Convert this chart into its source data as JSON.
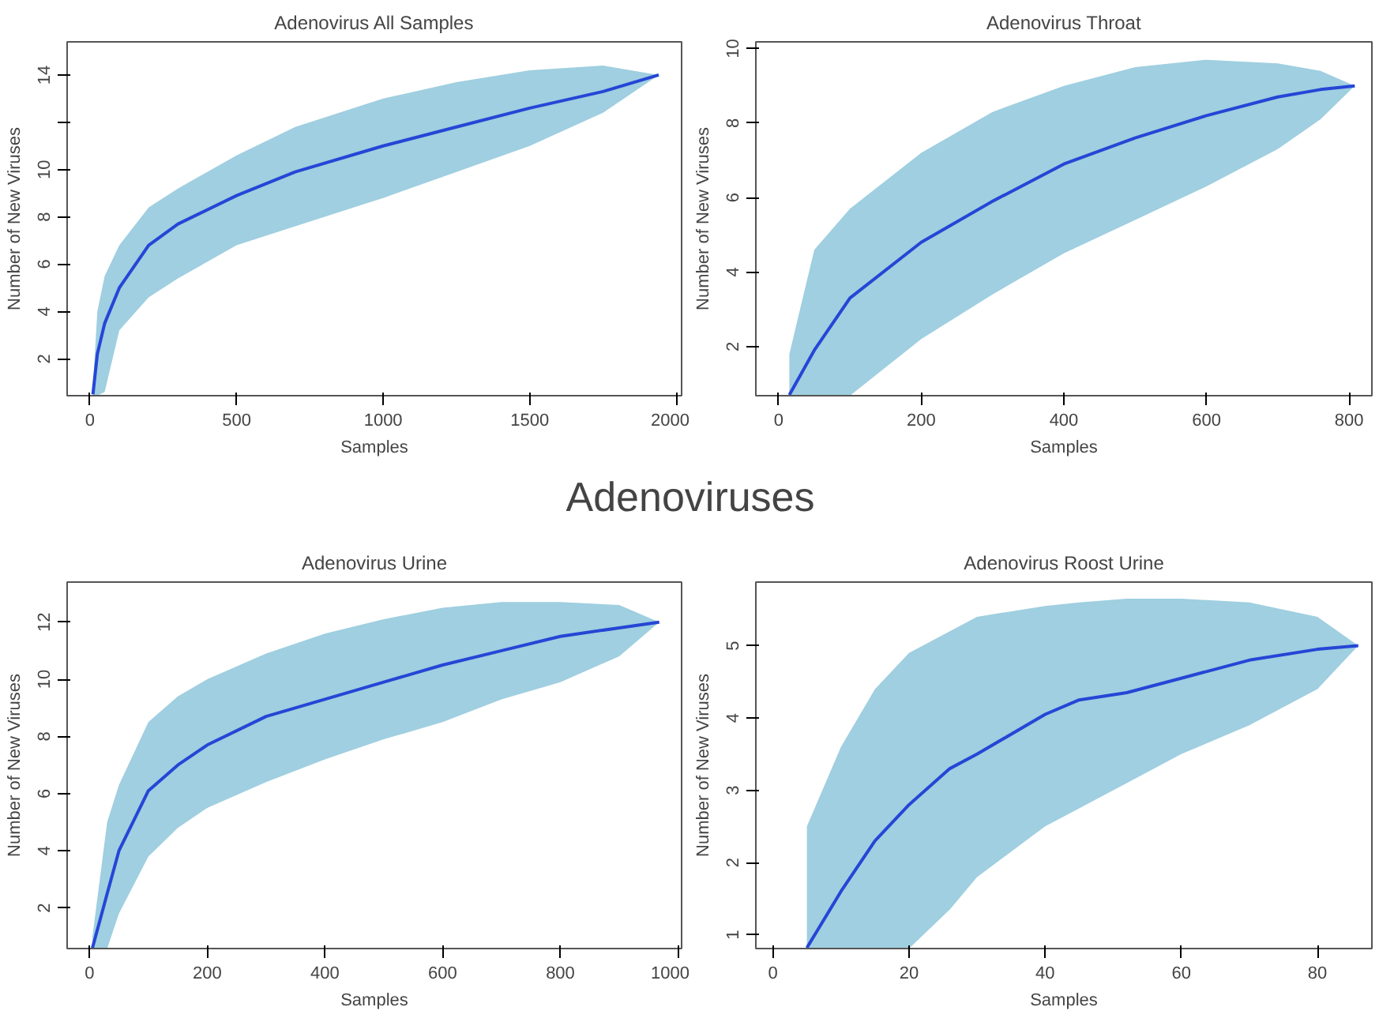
{
  "chart_data": [
    {
      "type": "line",
      "title": "Adenovirus All Samples",
      "xlabel": "Samples",
      "ylabel": "Number of New Viruses",
      "x": [
        10,
        25,
        50,
        100,
        200,
        300,
        500,
        700,
        1000,
        1250,
        1500,
        1750,
        1940
      ],
      "xlim": [
        -78,
        2018
      ],
      "ylim": [
        0.44,
        15.4
      ],
      "xticks": [
        0,
        500,
        1000,
        1500,
        2000
      ],
      "yticks": [
        2,
        4,
        6,
        8,
        10,
        {
          "value": 12,
          "label": null
        },
        14
      ],
      "series": [
        {
          "color": "#2546d6",
          "values": [
            0.5,
            2.2,
            3.5,
            5,
            6.8,
            7.7,
            8.9,
            9.9,
            11,
            11.8,
            12.6,
            13.3,
            14
          ],
          "upper": [
            0.8,
            4,
            5.5,
            6.8,
            8.4,
            9.2,
            10.6,
            11.8,
            13,
            13.7,
            14.2,
            14.4,
            14
          ],
          "lower": [
            0.44,
            0.44,
            0.6,
            3.2,
            4.6,
            5.4,
            6.8,
            7.6,
            8.8,
            9.9,
            11,
            12.4,
            14
          ]
        }
      ]
    },
    {
      "type": "line",
      "title": "Adenovirus Throat",
      "xlabel": "Samples",
      "ylabel": "Number of New Viruses",
      "x": [
        15,
        50,
        100,
        200,
        300,
        400,
        500,
        600,
        700,
        760,
        808
      ],
      "xlim": [
        -32,
        832
      ],
      "ylim": [
        0.68,
        10.18
      ],
      "xticks": [
        0,
        200,
        400,
        600,
        800
      ],
      "yticks": [
        2,
        4,
        6,
        8,
        10
      ],
      "series": [
        {
          "color": "#2546d6",
          "values": [
            0.7,
            1.9,
            3.3,
            4.8,
            5.9,
            6.9,
            7.6,
            8.2,
            8.7,
            8.9,
            9
          ],
          "upper": [
            1.8,
            4.6,
            5.7,
            7.2,
            8.3,
            9,
            9.5,
            9.7,
            9.6,
            9.4,
            9
          ],
          "lower": [
            0.68,
            0.68,
            0.68,
            2.2,
            3.4,
            4.5,
            5.4,
            6.3,
            7.3,
            8.1,
            9
          ]
        }
      ]
    },
    {
      "type": "other",
      "title": "Adenoviruses"
    },
    {
      "type": "line",
      "title": "Adenovirus Urine",
      "xlabel": "Samples",
      "ylabel": "Number of New Viruses",
      "x": [
        5,
        30,
        50,
        100,
        150,
        200,
        300,
        400,
        500,
        600,
        700,
        800,
        900,
        968
      ],
      "xlim": [
        -38,
        1006
      ],
      "ylim": [
        0.58,
        13.4
      ],
      "xticks": [
        0,
        200,
        400,
        600,
        800,
        1000
      ],
      "yticks": [
        2,
        4,
        6,
        8,
        10,
        12
      ],
      "series": [
        {
          "color": "#2546d6",
          "values": [
            0.6,
            2.5,
            4,
            6.1,
            7,
            7.7,
            8.7,
            9.3,
            9.9,
            10.5,
            11,
            11.5,
            11.8,
            12
          ],
          "upper": [
            1,
            5,
            6.3,
            8.5,
            9.4,
            10,
            10.9,
            11.6,
            12.1,
            12.5,
            12.7,
            12.7,
            12.6,
            12
          ],
          "lower": [
            0.58,
            0.58,
            1.8,
            3.8,
            4.8,
            5.5,
            6.4,
            7.2,
            7.9,
            8.5,
            9.3,
            9.9,
            10.8,
            12
          ]
        }
      ]
    },
    {
      "type": "line",
      "title": "Adenovirus Roost Urine",
      "xlabel": "Samples",
      "ylabel": "Number of New Viruses",
      "x": [
        5,
        10,
        15,
        20,
        26,
        30,
        40,
        45,
        52,
        60,
        70,
        80,
        86
      ],
      "xlim": [
        -2.5,
        88
      ],
      "ylim": [
        0.81,
        5.88
      ],
      "xticks": [
        0,
        20,
        40,
        60,
        80
      ],
      "yticks": [
        1,
        2,
        3,
        4,
        5
      ],
      "series": [
        {
          "color": "#2546d6",
          "values": [
            0.82,
            1.6,
            2.3,
            2.8,
            3.3,
            3.5,
            4.05,
            4.25,
            4.35,
            4.55,
            4.8,
            4.95,
            5
          ],
          "upper": [
            2.5,
            3.6,
            4.4,
            4.9,
            5.2,
            5.4,
            5.55,
            5.6,
            5.65,
            5.65,
            5.6,
            5.4,
            5
          ],
          "lower": [
            0.81,
            0.81,
            0.81,
            0.81,
            1.35,
            1.8,
            2.5,
            2.75,
            3.1,
            3.5,
            3.9,
            4.4,
            5
          ]
        }
      ]
    }
  ]
}
